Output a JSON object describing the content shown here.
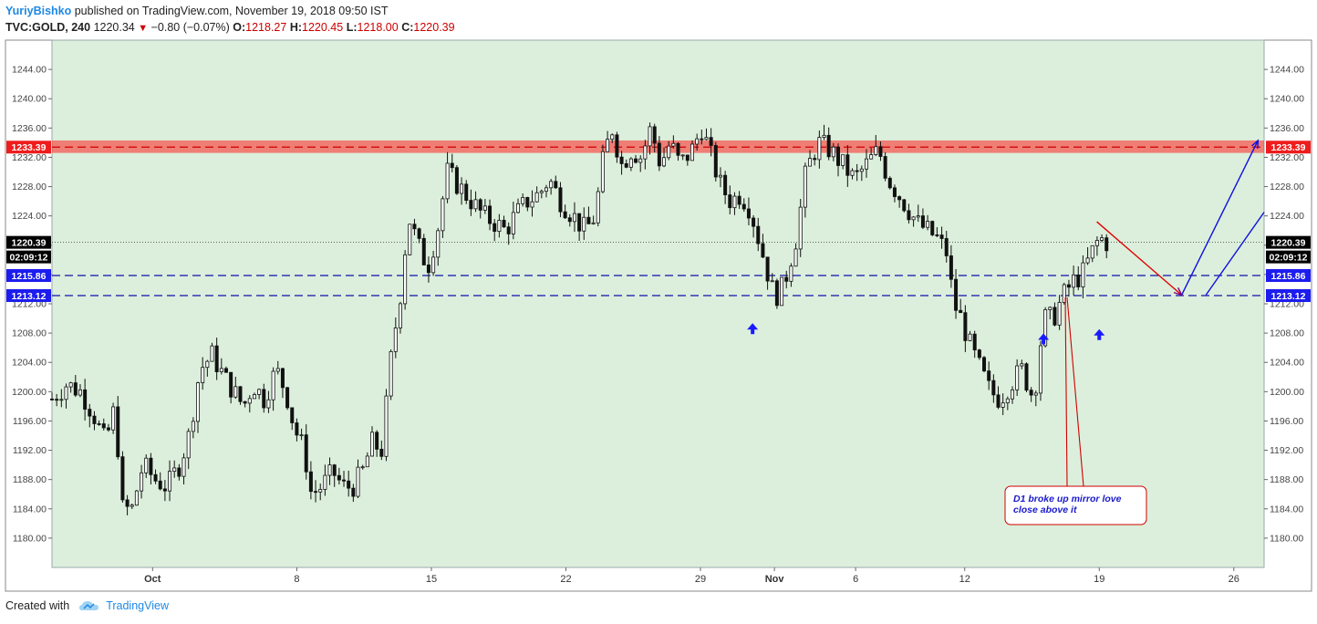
{
  "header": {
    "author": "YuriyBishko",
    "published": "published on TradingView.com, November 19, 2018 09:50 IST",
    "symbol": "TVC:GOLD, 240",
    "last": "1220.34",
    "change": "−0.80 (−0.07%)",
    "o_label": "O:",
    "o": "1218.27",
    "h_label": "H:",
    "h": "1220.45",
    "l_label": "L:",
    "l": "1218.00",
    "c_label": "C:",
    "c": "1220.39"
  },
  "footer": {
    "created": "Created with",
    "brand": "TradingView"
  },
  "colors": {
    "bg": "#dcefdc",
    "candle": "#111111",
    "resistance": "#ff2020",
    "support": "#2020ee",
    "bullArrow": "#1a1aff",
    "note": "#cc0000"
  },
  "chart_data": {
    "type": "candlestick",
    "ylim": [
      1176,
      1248
    ],
    "y_ticks": [
      "1180.00",
      "1184.00",
      "1188.00",
      "1192.00",
      "1196.00",
      "1200.00",
      "1204.00",
      "1208.00",
      "1212.00",
      "1216.00",
      "1220.00",
      "1224.00",
      "1228.00",
      "1232.00",
      "1236.00",
      "1240.00",
      "1244.00"
    ],
    "x_ticks": [
      {
        "label": "Oct",
        "bold": true,
        "t": 0.083
      },
      {
        "label": "8",
        "bold": false,
        "t": 0.202
      },
      {
        "label": "15",
        "bold": false,
        "t": 0.313
      },
      {
        "label": "22",
        "bold": false,
        "t": 0.424
      },
      {
        "label": "29",
        "bold": false,
        "t": 0.535
      },
      {
        "label": "Nov",
        "bold": true,
        "t": 0.596
      },
      {
        "label": "6",
        "bold": false,
        "t": 0.663
      },
      {
        "label": "12",
        "bold": false,
        "t": 0.753
      },
      {
        "label": "19",
        "bold": false,
        "t": 0.864
      },
      {
        "label": "26",
        "bold": false,
        "t": 0.975
      }
    ],
    "zones": [
      {
        "name": "resistance",
        "from": 1232.6,
        "to": 1234.3,
        "line": 1233.39,
        "label": "1233.39"
      },
      {
        "name": "support",
        "from": 1213.12,
        "to": 1215.86,
        "lines": [
          1215.86,
          1213.12
        ],
        "labels": [
          "1215.86",
          "1213.12"
        ]
      }
    ],
    "last_price": {
      "value": 1220.39,
      "label": "1220.39",
      "countdown": "02:09:12"
    },
    "close_path": [
      [
        0,
        1199
      ],
      [
        0.012,
        1201
      ],
      [
        0.024,
        1200
      ],
      [
        0.034,
        1197
      ],
      [
        0.044,
        1193
      ],
      [
        0.052,
        1198
      ],
      [
        0.058,
        1184
      ],
      [
        0.066,
        1184
      ],
      [
        0.075,
        1190
      ],
      [
        0.085,
        1188
      ],
      [
        0.095,
        1187
      ],
      [
        0.105,
        1190
      ],
      [
        0.113,
        1194
      ],
      [
        0.122,
        1203
      ],
      [
        0.132,
        1205
      ],
      [
        0.142,
        1202
      ],
      [
        0.15,
        1200
      ],
      [
        0.158,
        1198
      ],
      [
        0.166,
        1201
      ],
      [
        0.175,
        1199
      ],
      [
        0.185,
        1203
      ],
      [
        0.193,
        1200
      ],
      [
        0.2,
        1195
      ],
      [
        0.208,
        1192
      ],
      [
        0.214,
        1186
      ],
      [
        0.222,
        1187
      ],
      [
        0.232,
        1189
      ],
      [
        0.24,
        1187
      ],
      [
        0.248,
        1187
      ],
      [
        0.256,
        1189
      ],
      [
        0.264,
        1193
      ],
      [
        0.272,
        1192
      ],
      [
        0.28,
        1205
      ],
      [
        0.288,
        1214
      ],
      [
        0.294,
        1224
      ],
      [
        0.302,
        1220
      ],
      [
        0.31,
        1217
      ],
      [
        0.318,
        1222
      ],
      [
        0.326,
        1230
      ],
      [
        0.336,
        1228
      ],
      [
        0.346,
        1226
      ],
      [
        0.356,
        1224
      ],
      [
        0.366,
        1223
      ],
      [
        0.374,
        1222
      ],
      [
        0.382,
        1224
      ],
      [
        0.392,
        1226
      ],
      [
        0.402,
        1227
      ],
      [
        0.41,
        1229
      ],
      [
        0.42,
        1226
      ],
      [
        0.43,
        1224
      ],
      [
        0.44,
        1222
      ],
      [
        0.448,
        1224
      ],
      [
        0.455,
        1232
      ],
      [
        0.462,
        1236
      ],
      [
        0.47,
        1231
      ],
      [
        0.478,
        1233
      ],
      [
        0.486,
        1232
      ],
      [
        0.494,
        1236
      ],
      [
        0.502,
        1231
      ],
      [
        0.51,
        1234
      ],
      [
        0.518,
        1231
      ],
      [
        0.528,
        1233
      ],
      [
        0.536,
        1236
      ],
      [
        0.544,
        1232
      ],
      [
        0.552,
        1228
      ],
      [
        0.56,
        1226
      ],
      [
        0.568,
        1227
      ],
      [
        0.576,
        1225
      ],
      [
        0.586,
        1219
      ],
      [
        0.594,
        1214
      ],
      [
        0.6,
        1213
      ],
      [
        0.606,
        1216
      ],
      [
        0.614,
        1221
      ],
      [
        0.622,
        1230
      ],
      [
        0.632,
        1234
      ],
      [
        0.642,
        1233
      ],
      [
        0.652,
        1231
      ],
      [
        0.662,
        1229
      ],
      [
        0.672,
        1231
      ],
      [
        0.682,
        1233
      ],
      [
        0.69,
        1229
      ],
      [
        0.698,
        1227
      ],
      [
        0.706,
        1225
      ],
      [
        0.714,
        1223
      ],
      [
        0.722,
        1222
      ],
      [
        0.73,
        1221
      ],
      [
        0.738,
        1219
      ],
      [
        0.744,
        1212
      ],
      [
        0.75,
        1210
      ],
      [
        0.758,
        1206
      ],
      [
        0.766,
        1203
      ],
      [
        0.774,
        1200
      ],
      [
        0.782,
        1199
      ],
      [
        0.79,
        1201
      ],
      [
        0.8,
        1203
      ],
      [
        0.81,
        1199
      ],
      [
        0.818,
        1210
      ],
      [
        0.826,
        1210
      ],
      [
        0.834,
        1213
      ],
      [
        0.842,
        1215
      ],
      [
        0.85,
        1216
      ],
      [
        0.858,
        1219
      ],
      [
        0.864,
        1221
      ],
      [
        0.87,
        1220.4
      ]
    ],
    "annotations": [
      {
        "type": "arrow-up",
        "t": 0.578,
        "y": 1208.6
      },
      {
        "type": "arrow-up",
        "t": 0.818,
        "y": 1207.2
      },
      {
        "type": "arrow-up",
        "t": 0.864,
        "y": 1207.8
      },
      {
        "type": "projection",
        "color": "red",
        "from": [
          0.862,
          1223.2
        ],
        "to": [
          0.932,
          1213.2
        ]
      },
      {
        "type": "projection",
        "color": "blue",
        "from": [
          0.932,
          1213.2
        ],
        "to": [
          0.995,
          1234.3
        ]
      },
      {
        "type": "projection",
        "color": "blue",
        "from": [
          0.952,
          1213.2
        ],
        "to": [
          1.0,
          1224.5
        ]
      }
    ],
    "note": {
      "lines": [
        "D1 broke up mirror love",
        "close above it"
      ]
    }
  }
}
